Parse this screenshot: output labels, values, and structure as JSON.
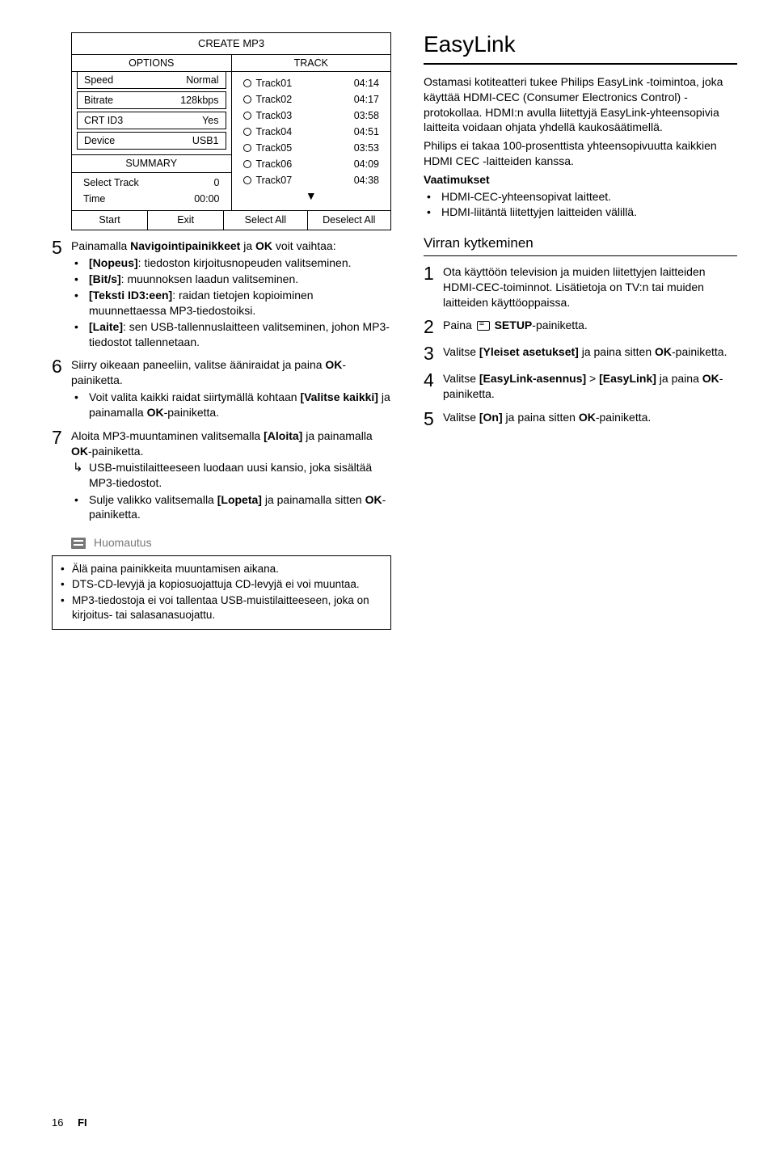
{
  "panel": {
    "title": "CREATE MP3",
    "options_head": "OPTIONS",
    "track_head": "TRACK",
    "options": [
      {
        "k": "Speed",
        "v": "Normal"
      },
      {
        "k": "Bitrate",
        "v": "128kbps"
      },
      {
        "k": "CRT ID3",
        "v": "Yes"
      },
      {
        "k": "Device",
        "v": "USB1"
      }
    ],
    "summary_head": "SUMMARY",
    "summary": [
      {
        "k": "Select Track",
        "v": "0"
      },
      {
        "k": "Time",
        "v": "00:00"
      }
    ],
    "tracks": [
      {
        "n": "Track01",
        "t": "04:14"
      },
      {
        "n": "Track02",
        "t": "04:17"
      },
      {
        "n": "Track03",
        "t": "03:58"
      },
      {
        "n": "Track04",
        "t": "04:51"
      },
      {
        "n": "Track05",
        "t": "03:53"
      },
      {
        "n": "Track06",
        "t": "04:09"
      },
      {
        "n": "Track07",
        "t": "04:38"
      }
    ],
    "buttons": [
      "Start",
      "Exit",
      "Select All",
      "Deselect All"
    ]
  },
  "left": {
    "step5_lead_a": "Painamalla ",
    "step5_lead_b": "Navigointipainikkeet",
    "step5_lead_c": " ja ",
    "step5_lead_d": "OK",
    "step5_lead_e": " voit vaihtaa:",
    "step5_b1_a": "[Nopeus]",
    "step5_b1_b": ": tiedoston kirjoitusnopeuden valitseminen.",
    "step5_b2_a": "[Bit/s]",
    "step5_b2_b": ": muunnoksen laadun valitseminen.",
    "step5_b3_a": "[Teksti ID3:een]",
    "step5_b3_b": ": raidan tietojen kopioiminen muunnettaessa MP3-tiedostoiksi.",
    "step5_b4_a": "[Laite]",
    "step5_b4_b": ": sen USB-tallennuslaitteen valitseminen, johon MP3-tiedostot tallennetaan.",
    "step6_a": "Siirry oikeaan paneeliin, valitse ääniraidat ja paina ",
    "step6_b": "OK",
    "step6_c": "-painiketta.",
    "step6_b1_a": "Voit valita kaikki raidat siirtymällä kohtaan ",
    "step6_b1_b": "[Valitse kaikki]",
    "step6_b1_c": " ja painamalla ",
    "step6_b1_d": "OK",
    "step6_b1_e": "-painiketta.",
    "step7_a": "Aloita MP3-muuntaminen valitsemalla ",
    "step7_b": "[Aloita]",
    "step7_c": " ja painamalla ",
    "step7_d": "OK",
    "step7_e": "-painiketta.",
    "step7_arrow": "USB-muistilaitteeseen luodaan uusi kansio, joka sisältää MP3-tiedostot.",
    "step7_b1_a": "Sulje valikko valitsemalla ",
    "step7_b1_b": "[Lopeta]",
    "step7_b1_c": " ja painamalla sitten ",
    "step7_b1_d": "OK",
    "step7_b1_e": "-painiketta.",
    "note_head": "Huomautus",
    "note1": "Älä paina painikkeita muuntamisen aikana.",
    "note2": "DTS-CD-levyjä ja kopiosuojattuja CD-levyjä ei voi muuntaa.",
    "note3": "MP3-tiedostoja ei voi tallentaa USB-muistilaitteeseen, joka on kirjoitus- tai salasanasuojattu."
  },
  "right": {
    "h1": "EasyLink",
    "intro": "Ostamasi kotiteatteri tukee Philips EasyLink -toimintoa, joka käyttää HDMI-CEC (Consumer Electronics Control) -protokollaa. HDMI:n avulla liitettyjä EasyLink-yhteensopivia laitteita voidaan ohjata yhdellä kaukosäätimellä.",
    "intro2": "Philips ei takaa 100-prosenttista yhteensopivuutta kaikkien HDMI CEC -laitteiden kanssa.",
    "req_head": "Vaatimukset",
    "req1": "HDMI-CEC-yhteensopivat laitteet.",
    "req2": "HDMI-liitäntä liitettyjen laitteiden välillä.",
    "h2": "Virran kytkeminen",
    "s1": "Ota käyttöön television ja muiden liitettyjen laitteiden HDMI-CEC-toiminnot. Lisätietoja on TV:n tai muiden laitteiden käyttöoppaissa.",
    "s2_a": "Paina ",
    "s2_b": " SETUP",
    "s2_c": "-painiketta.",
    "s3_a": "Valitse ",
    "s3_b": "[Yleiset asetukset]",
    "s3_c": " ja paina sitten ",
    "s3_d": "OK",
    "s3_e": "-painiketta.",
    "s4_a": "Valitse ",
    "s4_b": "[EasyLink-asennus]",
    "s4_c": " > ",
    "s4_d": "[EasyLink]",
    "s4_e": " ja paina ",
    "s4_f": "OK",
    "s4_g": "-painiketta.",
    "s5_a": "Valitse ",
    "s5_b": "[On]",
    "s5_c": " ja paina sitten ",
    "s5_d": "OK",
    "s5_e": "-painiketta."
  },
  "footer_page": "16",
  "footer_lang": "FI"
}
